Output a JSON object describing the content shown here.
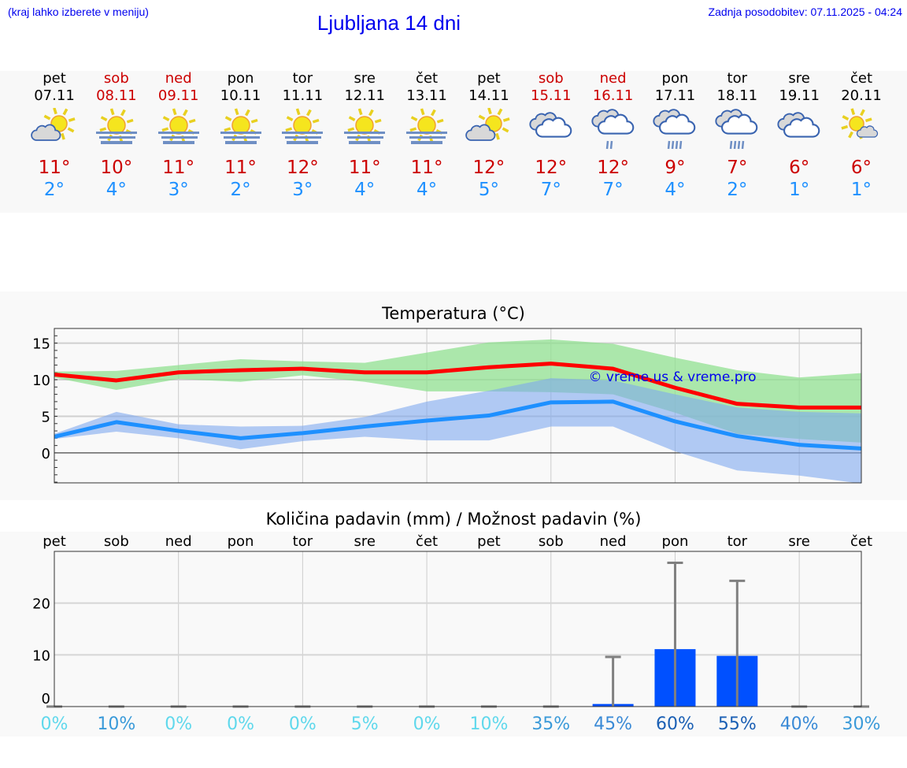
{
  "header": {
    "hint": "(kraj lahko izberete v meniju)",
    "title": "Ljubljana 14 dni",
    "updated": "Zadnja posodobitev: 07.11.2025 - 04:24"
  },
  "days": [
    {
      "name": "pet",
      "date": "07.11",
      "weekend": false,
      "icon": "sun-cloud",
      "max": "11°",
      "min": "2°"
    },
    {
      "name": "sob",
      "date": "08.11",
      "weekend": true,
      "icon": "sun-fog",
      "max": "10°",
      "min": "4°"
    },
    {
      "name": "ned",
      "date": "09.11",
      "weekend": true,
      "icon": "sun-fog",
      "max": "11°",
      "min": "3°"
    },
    {
      "name": "pon",
      "date": "10.11",
      "weekend": false,
      "icon": "sun-fog",
      "max": "11°",
      "min": "2°"
    },
    {
      "name": "tor",
      "date": "11.11",
      "weekend": false,
      "icon": "sun-fog",
      "max": "12°",
      "min": "3°"
    },
    {
      "name": "sre",
      "date": "12.11",
      "weekend": false,
      "icon": "sun-fog",
      "max": "11°",
      "min": "4°"
    },
    {
      "name": "čet",
      "date": "13.11",
      "weekend": false,
      "icon": "sun-fog",
      "max": "11°",
      "min": "4°"
    },
    {
      "name": "pet",
      "date": "14.11",
      "weekend": false,
      "icon": "sun-cloud",
      "max": "12°",
      "min": "5°"
    },
    {
      "name": "sob",
      "date": "15.11",
      "weekend": true,
      "icon": "cloudy",
      "max": "12°",
      "min": "7°"
    },
    {
      "name": "ned",
      "date": "16.11",
      "weekend": true,
      "icon": "cloud-light-rain",
      "max": "12°",
      "min": "7°"
    },
    {
      "name": "pon",
      "date": "17.11",
      "weekend": false,
      "icon": "cloud-rain",
      "max": "9°",
      "min": "4°"
    },
    {
      "name": "tor",
      "date": "18.11",
      "weekend": false,
      "icon": "cloud-rain",
      "max": "7°",
      "min": "2°"
    },
    {
      "name": "sre",
      "date": "19.11",
      "weekend": false,
      "icon": "cloudy",
      "max": "6°",
      "min": "1°"
    },
    {
      "name": "čet",
      "date": "20.11",
      "weekend": false,
      "icon": "sun-small-cloud",
      "max": "6°",
      "min": "1°"
    }
  ],
  "colors": {
    "weekend": "#cc0000",
    "max": "#cc0000",
    "min": "#1e90ff",
    "max_band": "#90e090",
    "min_band": "#7fa8ee",
    "bar": "#0050ff",
    "error": "#808080"
  },
  "chart_data": [
    {
      "type": "line",
      "title": "Temperatura (°C)",
      "watermark": "© vreme.us & vreme.pro",
      "x": [
        "07.11",
        "08.11",
        "09.11",
        "10.11",
        "11.11",
        "12.11",
        "13.11",
        "14.11",
        "15.11",
        "16.11",
        "17.11",
        "18.11",
        "19.11",
        "20.11"
      ],
      "ylim": [
        -4.1,
        17
      ],
      "yticks": [
        0,
        5,
        10,
        15
      ],
      "grid": true,
      "series": [
        {
          "role": "max",
          "values": [
            10.7,
            9.9,
            11.0,
            11.3,
            11.5,
            11.0,
            11.0,
            11.7,
            12.2,
            11.5,
            8.9,
            6.7,
            6.2,
            6.2
          ],
          "band_low": [
            10.3,
            8.6,
            10.1,
            9.7,
            10.6,
            9.7,
            8.4,
            8.4,
            8.3,
            8.0,
            5.5,
            2.6,
            1.9,
            1.4
          ],
          "band_high": [
            11.1,
            11.2,
            12.0,
            12.8,
            12.5,
            12.3,
            13.7,
            15.1,
            15.5,
            14.9,
            13.0,
            11.3,
            10.3,
            10.9
          ]
        },
        {
          "role": "min",
          "values": [
            2.2,
            4.2,
            3.0,
            2.0,
            2.7,
            3.6,
            4.4,
            5.1,
            6.9,
            7.0,
            4.3,
            2.3,
            1.1,
            0.6
          ],
          "band_low": [
            1.9,
            2.9,
            2.0,
            0.5,
            1.6,
            2.2,
            1.7,
            1.7,
            3.6,
            3.6,
            0.2,
            -2.4,
            -3.1,
            -4.2
          ],
          "band_high": [
            2.6,
            5.6,
            3.9,
            3.6,
            3.7,
            4.9,
            7.0,
            8.5,
            10.2,
            9.9,
            8.0,
            6.2,
            5.6,
            5.4
          ]
        }
      ]
    },
    {
      "type": "bar",
      "title": "Količina padavin (mm) / Možnost padavin (%)",
      "categories": [
        "pet",
        "sob",
        "ned",
        "pon",
        "tor",
        "sre",
        "čet",
        "pet",
        "sob",
        "ned",
        "pon",
        "tor",
        "sre",
        "čet"
      ],
      "values": [
        0,
        0,
        0,
        0,
        0,
        0,
        0,
        0,
        0,
        0.5,
        11.1,
        9.8,
        0,
        0
      ],
      "error_max": [
        0,
        0,
        0,
        0,
        0,
        0,
        0,
        0,
        0,
        9.6,
        27.8,
        24.3,
        0,
        0
      ],
      "probability": [
        "0%",
        "10%",
        "0%",
        "0%",
        "0%",
        "5%",
        "0%",
        "10%",
        "35%",
        "45%",
        "60%",
        "55%",
        "40%",
        "30%"
      ],
      "probability_colors": [
        "#5fd8ec",
        "#3a9ad9",
        "#5fd8ec",
        "#5fd8ec",
        "#5fd8ec",
        "#5fd8ec",
        "#5fd8ec",
        "#5fd8ec",
        "#3a9ad9",
        "#3a8ad6",
        "#1a5fb4",
        "#1a5fb4",
        "#3a8ad6",
        "#3a9ad9"
      ],
      "ylim": [
        0,
        30
      ],
      "yticks": [
        0,
        10,
        20
      ],
      "grid": true
    }
  ]
}
